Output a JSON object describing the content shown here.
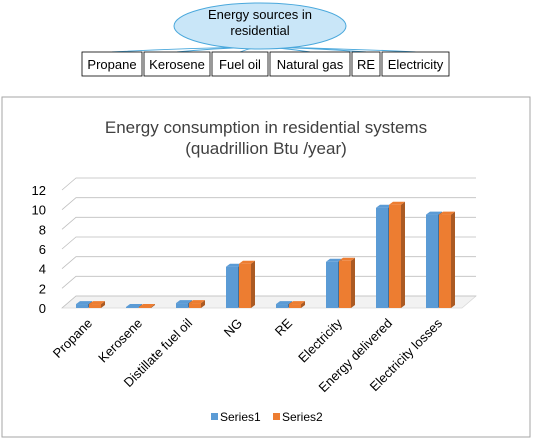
{
  "diagram": {
    "root_label_line1": "Energy sources in",
    "root_label_line2": "residential",
    "sources": [
      "Propane",
      "Kerosene",
      "Fuel oil",
      "Natural gas",
      "RE",
      "Electricity"
    ],
    "colors": {
      "ellipse_fill": "#c9e6f8",
      "ellipse_stroke": "#4aa8dc",
      "connector": "#4aa8dc"
    }
  },
  "chart_data": {
    "type": "bar",
    "title_line1": "Energy consumption in residential systems",
    "title_line2": "(quadrillion Btu /year)",
    "categories": [
      "Propane",
      "Kerosene",
      "Distillate fuel oil",
      "NG",
      "RE",
      "Electricity",
      "Energy delivered",
      "Electricity losses"
    ],
    "series": [
      {
        "name": "Series1",
        "values": [
          0.4,
          0.1,
          0.5,
          4.2,
          0.4,
          4.7,
          10.2,
          9.5
        ],
        "color": "#5b9bd5"
      },
      {
        "name": "Series2",
        "values": [
          0.4,
          0.1,
          0.5,
          4.5,
          0.4,
          4.8,
          10.5,
          9.5
        ],
        "color": "#ed7d31"
      }
    ],
    "yticks": [
      "0",
      "2",
      "4",
      "6",
      "8",
      "10",
      "12"
    ],
    "ylim": [
      0,
      12
    ],
    "grid": true,
    "style": "3d-clustered",
    "legend_position": "bottom"
  }
}
